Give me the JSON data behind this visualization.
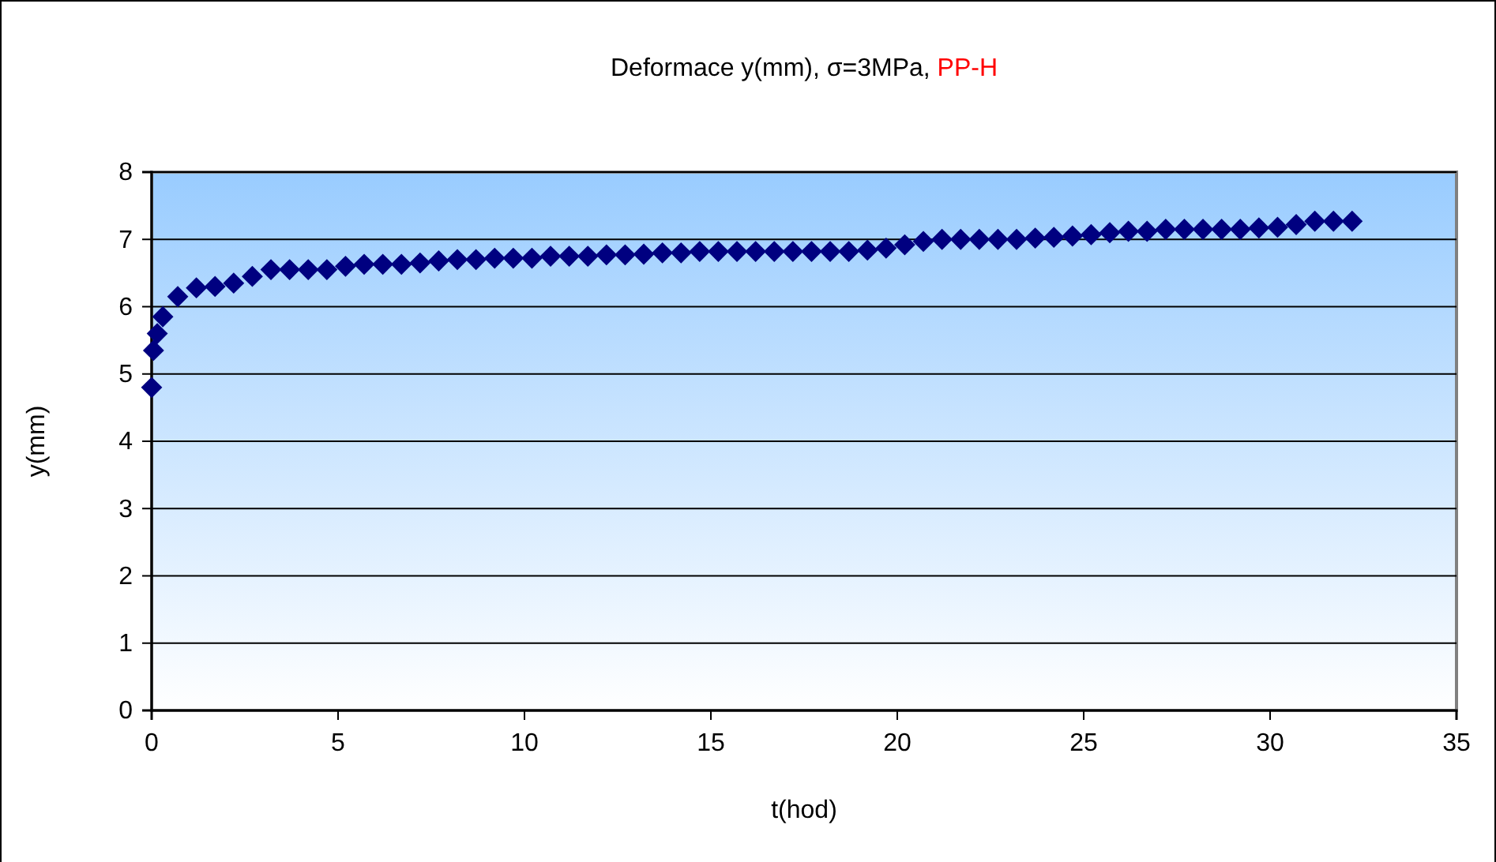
{
  "chart_data": {
    "type": "scatter",
    "title": "Deformace y(mm), σ=3MPa,",
    "subtitle": "PP-H",
    "xlabel": "t(hod)",
    "ylabel": "y(mm)",
    "xlim": [
      0,
      35
    ],
    "xticks": [
      0,
      5,
      10,
      15,
      20,
      25,
      30,
      35
    ],
    "ylim": [
      0,
      8
    ],
    "yticks": [
      0,
      1,
      2,
      3,
      4,
      5,
      6,
      7,
      8
    ],
    "grid": "y",
    "marker": "diamond",
    "series": [
      {
        "color": "#000080",
        "x": [
          0,
          0.05,
          0.15,
          0.3,
          0.7,
          1.2,
          1.7,
          2.2,
          2.7,
          3.2,
          3.7,
          4.2,
          4.7,
          5.2,
          5.7,
          6.2,
          6.7,
          7.2,
          7.7,
          8.2,
          8.7,
          9.2,
          9.7,
          10.2,
          10.7,
          11.2,
          11.7,
          12.2,
          12.7,
          13.2,
          13.7,
          14.2,
          14.7,
          15.2,
          15.7,
          16.2,
          16.7,
          17.2,
          17.7,
          18.2,
          18.7,
          19.2,
          19.7,
          20.2,
          20.7,
          21.2,
          21.7,
          22.2,
          22.7,
          23.2,
          23.7,
          24.2,
          24.7,
          25.2,
          25.7,
          26.2,
          26.7,
          27.2,
          27.7,
          28.2,
          28.7,
          29.2,
          29.7,
          30.2,
          30.7,
          31.2,
          31.7,
          32.2
        ],
        "values": [
          4.8,
          5.35,
          5.6,
          5.85,
          6.15,
          6.28,
          6.3,
          6.35,
          6.45,
          6.55,
          6.55,
          6.55,
          6.55,
          6.6,
          6.63,
          6.63,
          6.63,
          6.65,
          6.68,
          6.7,
          6.7,
          6.72,
          6.72,
          6.72,
          6.75,
          6.75,
          6.75,
          6.77,
          6.77,
          6.78,
          6.8,
          6.8,
          6.82,
          6.82,
          6.82,
          6.82,
          6.82,
          6.82,
          6.82,
          6.82,
          6.82,
          6.84,
          6.87,
          6.92,
          6.97,
          7.0,
          7.0,
          7.0,
          7.0,
          7.0,
          7.02,
          7.03,
          7.05,
          7.07,
          7.1,
          7.12,
          7.12,
          7.15,
          7.15,
          7.15,
          7.15,
          7.15,
          7.17,
          7.18,
          7.22,
          7.27,
          7.27,
          7.27
        ]
      }
    ]
  }
}
